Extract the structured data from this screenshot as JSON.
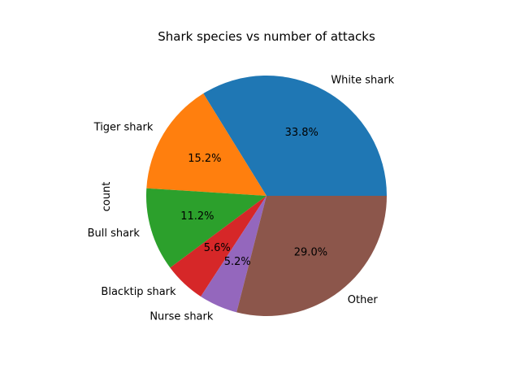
{
  "chart_data": {
    "type": "pie",
    "title": "Shark species vs number of attacks",
    "ylabel": "count",
    "start_angle_deg": 0,
    "direction": "counterclockwise",
    "slices": [
      {
        "label": "White shark",
        "percent": 33.8,
        "percent_label": "33.8%",
        "color": "#1f77b4"
      },
      {
        "label": "Tiger shark",
        "percent": 15.2,
        "percent_label": "15.2%",
        "color": "#ff7f0e"
      },
      {
        "label": "Bull shark",
        "percent": 11.2,
        "percent_label": "11.2%",
        "color": "#2ca02c"
      },
      {
        "label": "Blacktip shark",
        "percent": 5.6,
        "percent_label": "5.6%",
        "color": "#d62728"
      },
      {
        "label": "Nurse shark",
        "percent": 5.2,
        "percent_label": "5.2%",
        "color": "#9467bd"
      },
      {
        "label": "Other",
        "percent": 29.0,
        "percent_label": "29.0%",
        "color": "#8c564b"
      }
    ]
  }
}
